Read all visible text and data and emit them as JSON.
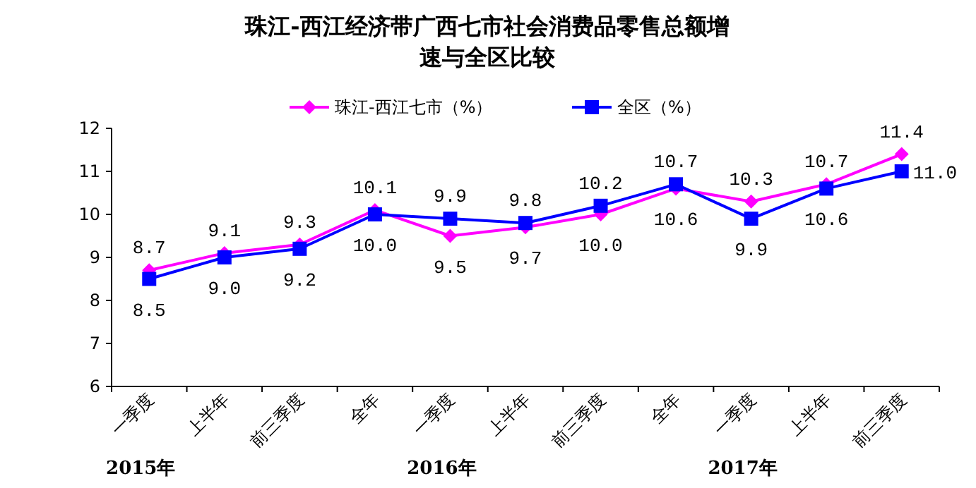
{
  "chart_data": {
    "type": "line",
    "title": "珠江-西江经济带广西七市社会消费品零售总额增速与全区比较",
    "categories": [
      "一季度",
      "上半年",
      "前三季度",
      "全年",
      "一季度",
      "上半年",
      "前三季度",
      "全年",
      "一季度",
      "上半年",
      "前三季度"
    ],
    "series": [
      {
        "name": "珠江-西江七市（%）",
        "color": "#ff00ff",
        "marker": "diamond",
        "values": [
          8.7,
          9.1,
          9.3,
          10.1,
          9.5,
          9.7,
          10.0,
          10.6,
          10.3,
          10.7,
          11.4
        ],
        "value_labels": [
          "8.7",
          "9.1",
          "9.3",
          "10.1",
          "9.5",
          "9.7",
          "10.0",
          "10.6",
          "10.3",
          "10.7",
          "11.4"
        ]
      },
      {
        "name": "全区（%）",
        "color": "#0000ff",
        "marker": "square",
        "values": [
          8.5,
          9.0,
          9.2,
          10.0,
          9.9,
          9.8,
          10.2,
          10.7,
          9.9,
          10.6,
          11.0
        ],
        "value_labels": [
          "8.5",
          "9.0",
          "9.2",
          "10.0",
          "9.9",
          "9.8",
          "10.2",
          "10.7",
          "9.9",
          "10.6",
          "11.0"
        ]
      }
    ],
    "ylim": [
      6,
      12
    ],
    "yticks": [
      6,
      7,
      8,
      9,
      10,
      11,
      12
    ],
    "grid": false,
    "legend": "top",
    "annotations": [
      "2015年",
      "2016年",
      "2017年"
    ]
  }
}
